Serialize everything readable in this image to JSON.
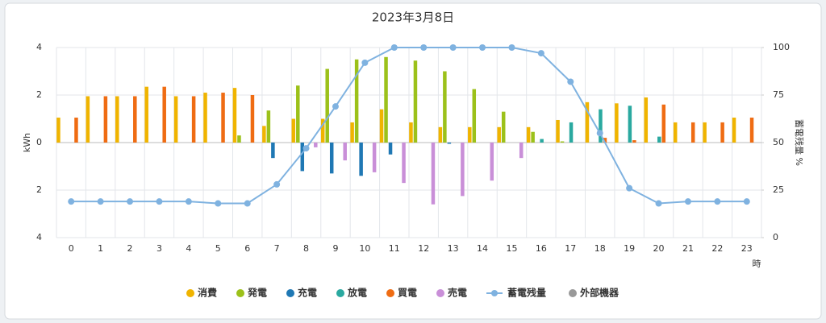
{
  "chart_data": {
    "type": "bar",
    "title": "2023年3月8日",
    "categories": [
      "0",
      "1",
      "2",
      "3",
      "4",
      "5",
      "6",
      "7",
      "8",
      "9",
      "10",
      "11",
      "12",
      "13",
      "14",
      "15",
      "16",
      "17",
      "18",
      "19",
      "20",
      "21",
      "22",
      "23"
    ],
    "xlabel": "時",
    "ylabel": "kWh",
    "y2label": "蓄電残量 %",
    "ylim": [
      -4,
      4
    ],
    "yticks": [
      {
        "value": -4,
        "label": "4"
      },
      {
        "value": -2,
        "label": "2"
      },
      0,
      2,
      4
    ],
    "y2lim": [
      0,
      100
    ],
    "y2ticks": [
      0,
      25,
      50,
      75,
      100
    ],
    "grid": true,
    "series": [
      {
        "name": "消費",
        "color": "#f0b400",
        "values": [
          1.05,
          1.95,
          1.95,
          2.35,
          1.95,
          2.1,
          2.3,
          0.7,
          1.0,
          1.0,
          0.85,
          1.4,
          0.85,
          0.65,
          0.65,
          0.65,
          0.65,
          0.95,
          1.7,
          1.65,
          1.9,
          0.85,
          0.85,
          1.05
        ]
      },
      {
        "name": "発電",
        "color": "#9cc11a",
        "values": [
          0,
          0,
          0,
          0,
          0,
          0,
          0.3,
          1.35,
          2.4,
          3.1,
          3.5,
          3.6,
          3.45,
          3.0,
          2.25,
          1.3,
          0.45,
          0.05,
          0,
          0,
          0,
          0,
          0,
          0
        ]
      },
      {
        "name": "充電",
        "color": "#1f78b4",
        "values": [
          0,
          0,
          0,
          0,
          0,
          0,
          0,
          -0.65,
          -1.2,
          -1.3,
          -1.4,
          -0.5,
          0,
          -0.05,
          0,
          0,
          0,
          0,
          0,
          0,
          0,
          0,
          0,
          0
        ]
      },
      {
        "name": "放電",
        "color": "#2aa9a0",
        "values": [
          0,
          0,
          0,
          0,
          0,
          0,
          0,
          0,
          0,
          0,
          0,
          0,
          0,
          0,
          0,
          0,
          0.15,
          0.85,
          1.4,
          1.55,
          0.25,
          0,
          0,
          0
        ]
      },
      {
        "name": "買電",
        "color": "#ef6c13",
        "values": [
          1.05,
          1.95,
          1.95,
          2.35,
          1.95,
          2.1,
          2.0,
          0,
          0,
          0,
          0,
          0,
          0,
          0,
          0,
          0,
          0,
          0,
          0.2,
          0.1,
          1.6,
          0.85,
          0.85,
          1.05
        ]
      },
      {
        "name": "売電",
        "color": "#c98fd8",
        "values": [
          0,
          0,
          0,
          0,
          0,
          0,
          0,
          0,
          -0.2,
          -0.75,
          -1.25,
          -1.7,
          -2.6,
          -2.25,
          -1.6,
          -0.65,
          0,
          0,
          0,
          0,
          0,
          0,
          0,
          0
        ]
      },
      {
        "name": "蓄電残量",
        "color": "#7fb2e0",
        "type": "line",
        "axis": "y2",
        "values": [
          19,
          19,
          19,
          19,
          19,
          18,
          18,
          28,
          47,
          69,
          92,
          100,
          100,
          100,
          100,
          100,
          97,
          82,
          55,
          26,
          18,
          19,
          19,
          19
        ]
      },
      {
        "name": "外部機器",
        "color": "#999999"
      }
    ]
  }
}
